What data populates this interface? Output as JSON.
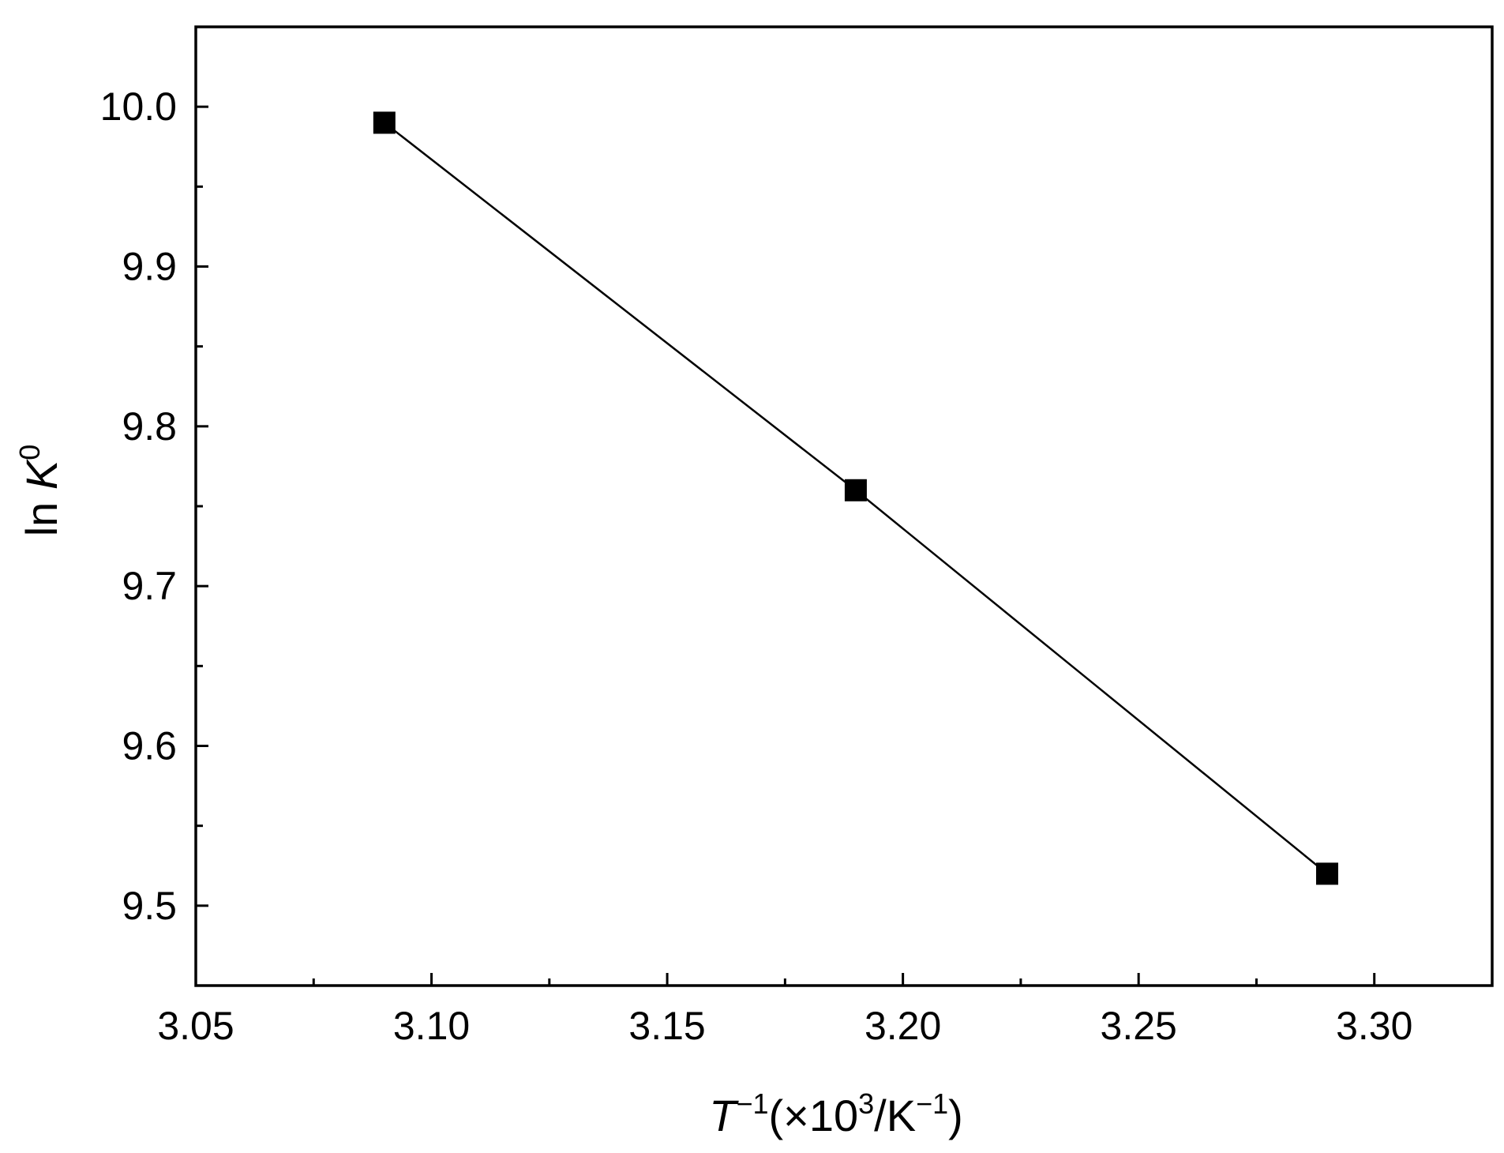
{
  "chart_data": {
    "type": "line",
    "xlabel": {
      "var": "T",
      "var_exp": "−1",
      "unit_open": "(×10",
      "unit_exp": "3",
      "unit_mid": "/K",
      "unit_exp2": "−1",
      "unit_close": ")"
    },
    "ylabel": {
      "prefix": "ln ",
      "var": "K",
      "var_exp": "0"
    },
    "xlim": [
      3.05,
      3.325
    ],
    "ylim": [
      9.45,
      10.05
    ],
    "x_major_ticks": [
      3.05,
      3.1,
      3.15,
      3.2,
      3.25,
      3.3
    ],
    "x_tick_labels": [
      "3.05",
      "3.10",
      "3.15",
      "3.20",
      "3.25",
      "3.30"
    ],
    "x_minor_ticks": [
      3.075,
      3.125,
      3.175,
      3.225,
      3.275
    ],
    "y_major_ticks": [
      9.5,
      9.6,
      9.7,
      9.8,
      9.9,
      10.0
    ],
    "y_tick_labels": [
      "9.5",
      "9.6",
      "9.7",
      "9.8",
      "9.9",
      "10.0"
    ],
    "y_minor_ticks": [
      9.55,
      9.65,
      9.75,
      9.85,
      9.95
    ],
    "grid": false,
    "legend": "none",
    "series": [
      {
        "marker": "square",
        "color": "#000000",
        "x": [
          3.09,
          3.19,
          3.29
        ],
        "y": [
          9.99,
          9.76,
          9.52
        ]
      }
    ]
  }
}
